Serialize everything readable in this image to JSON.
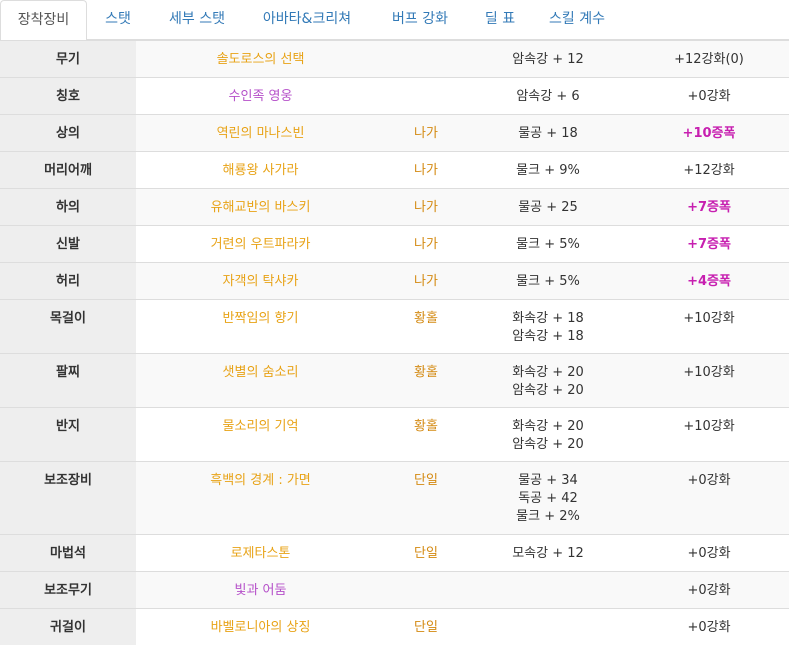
{
  "tabs": [
    {
      "label": "장착장비",
      "active": true
    },
    {
      "label": "스탯"
    },
    {
      "label": "세부 스탯"
    },
    {
      "label": "아바타&크리쳐"
    },
    {
      "label": "버프 강화"
    },
    {
      "label": "딜 표"
    },
    {
      "label": "스킬 계수"
    }
  ],
  "colors": {
    "orange": "#e8a317",
    "purple": "#b550c9",
    "amp": "#c71fb0",
    "type": "#d48a12"
  },
  "rows": [
    {
      "slot": "무기",
      "name": "솔도로스의 선택",
      "name_color": "orange",
      "type": "",
      "stats": [
        "암속강 + 12"
      ],
      "upgrade": "+12강화(0)",
      "upgrade_kind": "normal"
    },
    {
      "slot": "칭호",
      "name": "수인족 영웅",
      "name_color": "purple",
      "type": "",
      "stats": [
        "암속강 + 6"
      ],
      "upgrade": "+0강화",
      "upgrade_kind": "normal"
    },
    {
      "slot": "상의",
      "name": "역린의 마나스빈",
      "name_color": "orange",
      "type": "나가",
      "stats": [
        "물공 + 18"
      ],
      "upgrade": "+10증폭",
      "upgrade_kind": "amp"
    },
    {
      "slot": "머리어깨",
      "name": "해룡왕 사가라",
      "name_color": "orange",
      "type": "나가",
      "stats": [
        "물크 + 9%"
      ],
      "upgrade": "+12강화",
      "upgrade_kind": "normal"
    },
    {
      "slot": "하의",
      "name": "유해교반의 바스키",
      "name_color": "orange",
      "type": "나가",
      "stats": [
        "물공 + 25"
      ],
      "upgrade": "+7증폭",
      "upgrade_kind": "amp"
    },
    {
      "slot": "신발",
      "name": "거련의 우트파라카",
      "name_color": "orange",
      "type": "나가",
      "stats": [
        "물크 + 5%"
      ],
      "upgrade": "+7증폭",
      "upgrade_kind": "amp"
    },
    {
      "slot": "허리",
      "name": "자객의 탁샤카",
      "name_color": "orange",
      "type": "나가",
      "stats": [
        "물크 + 5%"
      ],
      "upgrade": "+4증폭",
      "upgrade_kind": "amp"
    },
    {
      "slot": "목걸이",
      "name": "반짝임의 향기",
      "name_color": "orange",
      "type": "황홀",
      "stats": [
        "화속강 + 18",
        "암속강 + 18"
      ],
      "upgrade": "+10강화",
      "upgrade_kind": "normal"
    },
    {
      "slot": "팔찌",
      "name": "샛별의 숨소리",
      "name_color": "orange",
      "type": "황홀",
      "stats": [
        "화속강 + 20",
        "암속강 + 20"
      ],
      "upgrade": "+10강화",
      "upgrade_kind": "normal"
    },
    {
      "slot": "반지",
      "name": "물소리의 기억",
      "name_color": "orange",
      "type": "황홀",
      "stats": [
        "화속강 + 20",
        "암속강 + 20"
      ],
      "upgrade": "+10강화",
      "upgrade_kind": "normal"
    },
    {
      "slot": "보조장비",
      "name": "흑백의 경계 : 가면",
      "name_color": "orange",
      "type": "단일",
      "stats": [
        "물공 + 34",
        "독공 + 42",
        "물크 + 2%"
      ],
      "upgrade": "+0강화",
      "upgrade_kind": "normal"
    },
    {
      "slot": "마법석",
      "name": "로제타스톤",
      "name_color": "orange",
      "type": "단일",
      "stats": [
        "모속강 + 12"
      ],
      "upgrade": "+0강화",
      "upgrade_kind": "normal"
    },
    {
      "slot": "보조무기",
      "name": "빛과 어둠",
      "name_color": "purple",
      "type": "",
      "stats": [],
      "upgrade": "+0강화",
      "upgrade_kind": "normal"
    },
    {
      "slot": "귀걸이",
      "name": "바벨로니아의 상징",
      "name_color": "orange",
      "type": "단일",
      "stats": [],
      "upgrade": "+0강화",
      "upgrade_kind": "normal"
    }
  ]
}
